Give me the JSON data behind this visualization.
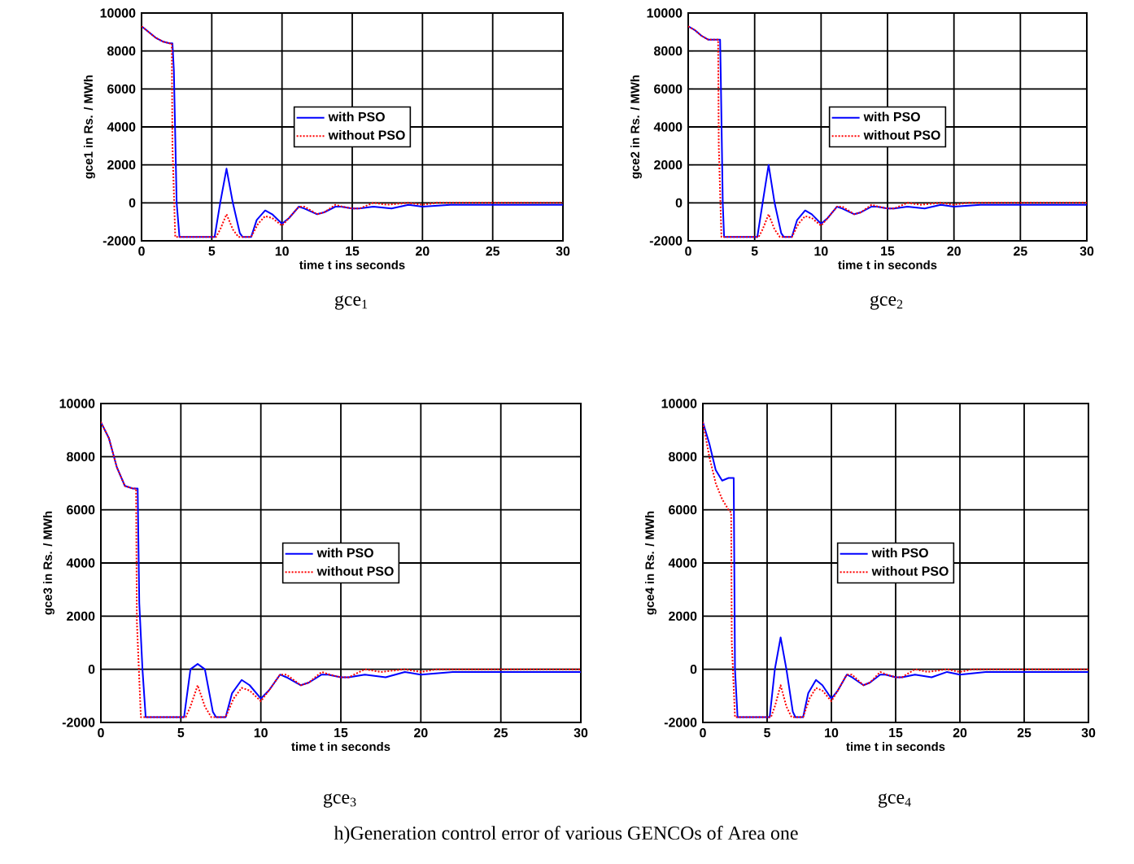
{
  "chart_data": [
    {
      "type": "line",
      "title": "gce$_{1}$",
      "xlabel": "time t ins seconds",
      "ylabel": "gce1 in Rs. / MWh",
      "xlim": [
        0,
        30
      ],
      "ylim": [
        -2000,
        10000
      ],
      "xticks": [
        0,
        5,
        10,
        15,
        20,
        25,
        30
      ],
      "yticks": [
        -2000,
        0,
        2000,
        4000,
        6000,
        8000,
        10000
      ],
      "grid": true,
      "legend": "center",
      "marker": "none",
      "annotations": [
        "h)Generation control  error of various GENCOs of Area  one"
      ],
      "series": [
        {
          "name": "with PSO",
          "color": "#0000ff",
          "line_style": "solid",
          "x": [
            0,
            0.5,
            1,
            1.5,
            2,
            2.2,
            2.3,
            2.5,
            2.7,
            5.2,
            5.6,
            6.05,
            6.5,
            7,
            7.2,
            7.8,
            8.2,
            8.8,
            9.3,
            10,
            10.5,
            11.2,
            11.6,
            12.5,
            13,
            13.8,
            14.2,
            15,
            15.5,
            16.5,
            17.8,
            19,
            20,
            22,
            24,
            26,
            28,
            30
          ],
          "values": [
            9300,
            9000,
            8700,
            8500,
            8400,
            8400,
            7000,
            0,
            -1800,
            -1800,
            0,
            1800,
            0,
            -1600,
            -1800,
            -1800,
            -900,
            -400,
            -600,
            -1100,
            -800,
            -200,
            -300,
            -600,
            -500,
            -200,
            -200,
            -300,
            -300,
            -200,
            -300,
            -100,
            -200,
            -100,
            -100,
            -100,
            -100,
            -100
          ]
        },
        {
          "name": "without PSO",
          "color": "#ff0000",
          "line_style": "dotted",
          "x": [
            0,
            0.5,
            1,
            1.5,
            2,
            2.15,
            2.2,
            2.4,
            5.3,
            5.6,
            6.05,
            6.5,
            6.9,
            7.8,
            8.3,
            8.8,
            9.3,
            10,
            10.5,
            11.2,
            11.6,
            12.5,
            13,
            13.8,
            14.3,
            15,
            15.5,
            16.5,
            17.5,
            19,
            20,
            21,
            23,
            25,
            30
          ],
          "values": [
            9300,
            9000,
            8700,
            8500,
            8400,
            8400,
            3000,
            -1800,
            -1800,
            -1400,
            -600,
            -1400,
            -1800,
            -1800,
            -1100,
            -700,
            -800,
            -1200,
            -800,
            -200,
            -200,
            -600,
            -500,
            -100,
            -200,
            -300,
            -300,
            0,
            -100,
            0,
            -100,
            0,
            0,
            0,
            0
          ]
        }
      ]
    },
    {
      "type": "line",
      "title": "gce$_{2}$",
      "xlabel": "time t in seconds",
      "ylabel": "gce2 in Rs. / MWh",
      "xlim": [
        0,
        30
      ],
      "ylim": [
        -2000,
        10000
      ],
      "xticks": [
        0,
        5,
        10,
        15,
        20,
        25,
        30
      ],
      "yticks": [
        -2000,
        0,
        2000,
        4000,
        6000,
        8000,
        10000
      ],
      "grid": true,
      "legend": "center",
      "marker": "none",
      "series": [
        {
          "name": "with PSO",
          "color": "#0000ff",
          "line_style": "solid",
          "x": [
            0,
            0.5,
            1,
            1.5,
            2,
            2.4,
            2.45,
            2.6,
            2.7,
            5.2,
            5.6,
            6.05,
            6.5,
            7,
            7.2,
            7.8,
            8.2,
            8.8,
            9.3,
            10,
            10.5,
            11.2,
            11.6,
            12.5,
            13,
            13.8,
            14.2,
            15,
            15.5,
            16.5,
            17.8,
            19,
            20,
            22,
            24,
            26,
            28,
            30
          ],
          "values": [
            9300,
            9100,
            8800,
            8600,
            8600,
            8600,
            6700,
            0,
            -1800,
            -1800,
            0,
            2000,
            0,
            -1600,
            -1800,
            -1800,
            -900,
            -400,
            -600,
            -1100,
            -800,
            -200,
            -300,
            -600,
            -500,
            -200,
            -200,
            -300,
            -300,
            -200,
            -300,
            -100,
            -200,
            -100,
            -100,
            -100,
            -100,
            -100
          ]
        },
        {
          "name": "without PSO",
          "color": "#ff0000",
          "line_style": "dotted",
          "x": [
            0,
            0.5,
            1,
            1.5,
            2,
            2.25,
            2.3,
            2.5,
            5.3,
            5.6,
            6.05,
            6.5,
            6.9,
            7.8,
            8.3,
            8.8,
            9.3,
            10,
            10.5,
            11.2,
            11.6,
            12.5,
            13,
            13.8,
            14.3,
            15,
            15.5,
            16.5,
            17.5,
            19,
            20,
            21,
            23,
            25,
            30
          ],
          "values": [
            9300,
            9100,
            8800,
            8600,
            8600,
            8600,
            3000,
            -1800,
            -1800,
            -1400,
            -600,
            -1400,
            -1800,
            -1800,
            -1100,
            -700,
            -800,
            -1200,
            -800,
            -200,
            -200,
            -600,
            -500,
            -100,
            -200,
            -300,
            -300,
            0,
            -100,
            0,
            -100,
            0,
            0,
            0,
            0
          ]
        }
      ]
    },
    {
      "type": "line",
      "title": "gce$_{3}$",
      "xlabel": "time t in seconds",
      "ylabel": "gce3 in Rs. / MWh",
      "xlim": [
        0,
        30
      ],
      "ylim": [
        -2000,
        10000
      ],
      "xticks": [
        0,
        5,
        10,
        15,
        20,
        25,
        30
      ],
      "yticks": [
        -2000,
        0,
        2000,
        4000,
        6000,
        8000,
        10000
      ],
      "grid": true,
      "legend": "center",
      "marker": "none",
      "series": [
        {
          "name": "with PSO",
          "color": "#0000ff",
          "line_style": "solid",
          "x": [
            0,
            0.5,
            1,
            1.5,
            2,
            2.3,
            2.4,
            2.6,
            2.8,
            5.2,
            5.6,
            6.05,
            6.5,
            7,
            7.2,
            7.8,
            8.2,
            8.8,
            9.3,
            10,
            10.5,
            11.2,
            11.6,
            12.5,
            13,
            13.8,
            14.2,
            15,
            15.5,
            16.5,
            17.8,
            19,
            20,
            22,
            24,
            26,
            28,
            30
          ],
          "values": [
            9300,
            8700,
            7600,
            6900,
            6800,
            6800,
            2500,
            0,
            -1800,
            -1800,
            0,
            200,
            0,
            -1600,
            -1800,
            -1800,
            -900,
            -400,
            -600,
            -1100,
            -800,
            -200,
            -300,
            -600,
            -500,
            -200,
            -200,
            -300,
            -300,
            -200,
            -300,
            -100,
            -200,
            -100,
            -100,
            -100,
            -100,
            -100
          ]
        },
        {
          "name": "without PSO",
          "color": "#ff0000",
          "line_style": "dotted",
          "x": [
            0,
            0.5,
            1,
            1.5,
            2,
            2.2,
            2.25,
            2.5,
            5.3,
            5.6,
            6.05,
            6.5,
            6.9,
            7.8,
            8.3,
            8.8,
            9.3,
            10,
            10.5,
            11.2,
            11.6,
            12.5,
            13,
            13.8,
            14.3,
            15,
            15.5,
            16.5,
            17.5,
            19,
            20,
            21,
            23,
            25,
            30
          ],
          "values": [
            9300,
            8700,
            7600,
            6900,
            6800,
            6800,
            1800,
            -1800,
            -1800,
            -1400,
            -600,
            -1400,
            -1800,
            -1800,
            -1100,
            -700,
            -800,
            -1200,
            -800,
            -200,
            -200,
            -600,
            -500,
            -100,
            -200,
            -300,
            -300,
            0,
            -100,
            0,
            -100,
            0,
            0,
            0,
            0
          ]
        }
      ]
    },
    {
      "type": "line",
      "title": "gce$_{4}$",
      "xlabel": "time t in seconds",
      "ylabel": "gce4 in  Rs. / MWh",
      "xlim": [
        0,
        30
      ],
      "ylim": [
        -2000,
        10000
      ],
      "xticks": [
        0,
        5,
        10,
        15,
        20,
        25,
        30
      ],
      "yticks": [
        -2000,
        0,
        2000,
        4000,
        6000,
        8000,
        10000
      ],
      "grid": true,
      "legend": "center",
      "marker": "none",
      "series": [
        {
          "name": "with PSO",
          "color": "#0000ff",
          "line_style": "solid",
          "x": [
            0,
            0.5,
            1,
            1.5,
            2,
            2.2,
            2.4,
            2.5,
            2.7,
            5.2,
            5.6,
            6.05,
            6.5,
            7,
            7.2,
            7.8,
            8.2,
            8.8,
            9.3,
            10,
            10.5,
            11.2,
            11.6,
            12.5,
            13,
            13.8,
            14.2,
            15,
            15.5,
            16.5,
            17.8,
            19,
            20,
            22,
            24,
            26,
            28,
            30
          ],
          "values": [
            9300,
            8500,
            7500,
            7100,
            7200,
            7200,
            7200,
            0,
            -1800,
            -1800,
            0,
            1200,
            0,
            -1600,
            -1800,
            -1800,
            -900,
            -400,
            -600,
            -1100,
            -800,
            -200,
            -300,
            -600,
            -500,
            -200,
            -200,
            -300,
            -300,
            -200,
            -300,
            -100,
            -200,
            -100,
            -100,
            -100,
            -100,
            -100
          ]
        },
        {
          "name": "without PSO",
          "color": "#ff0000",
          "line_style": "dotted",
          "x": [
            0,
            0.5,
            1,
            1.5,
            2,
            2.2,
            2.25,
            2.5,
            5.3,
            5.6,
            6.05,
            6.5,
            6.9,
            7.8,
            8.3,
            8.8,
            9.3,
            10,
            10.5,
            11.2,
            11.6,
            12.5,
            13,
            13.8,
            14.3,
            15,
            15.5,
            16.5,
            17.5,
            19,
            20,
            21,
            23,
            25,
            30
          ],
          "values": [
            9300,
            8000,
            7000,
            6400,
            6000,
            5900,
            1000,
            -1800,
            -1800,
            -1400,
            -600,
            -1400,
            -1800,
            -1800,
            -1100,
            -700,
            -800,
            -1200,
            -800,
            -200,
            -200,
            -600,
            -500,
            -100,
            -200,
            -300,
            -300,
            0,
            -100,
            0,
            -100,
            0,
            0,
            0,
            0
          ]
        }
      ]
    }
  ]
}
